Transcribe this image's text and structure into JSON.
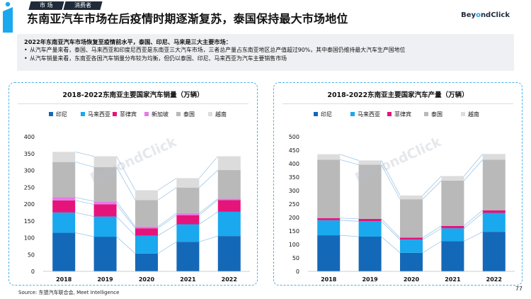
{
  "header": {
    "tabs": [
      "市  场",
      "消费者"
    ],
    "title": "东南亚汽车市场在后疫情时期逐渐复苏，泰国保持最大市场地位",
    "brand_prefix": "Bey",
    "brand_o": "o",
    "brand_suffix": "ndClick"
  },
  "summary": {
    "lead": "2022年东南亚汽车市场恢复至疫情前水平，泰国、印尼、马来是三大主要市场：",
    "bullets": [
      "从汽车产量来看，泰国、马来西亚和印度尼西亚是东南亚三大汽车市场，三者总产量占东南亚地区总产值超过90%，其中泰国仍维持最大汽车生产国地位",
      "从汽车销量来看，东南亚各国汽车销量分布较为均衡，但仍以泰国、印尼、马来西亚为汽车主要销售市场"
    ]
  },
  "watermark": "BeyondClick",
  "footer": {
    "source": "Source: 东盟汽车联合会, Meet Intelligence",
    "page": "77"
  },
  "colors": {
    "印尼": "#1468b8",
    "马来西亚": "#1aa8ee",
    "菲律宾": "#e5147a",
    "新加坡": "#e67ae8",
    "泰国": "#b9b9b9",
    "越南": "#dcdcdc",
    "connector": "#9ec8ea"
  },
  "chart_data": [
    {
      "type": "bar",
      "stacked": true,
      "title": "2018-2022东南亚主要国家汽车销量（万辆）",
      "categories": [
        "2018",
        "2019",
        "2020",
        "2021",
        "2022"
      ],
      "ylim": [
        0,
        400
      ],
      "yticks": [
        0,
        50,
        100,
        150,
        200,
        250,
        300,
        350,
        400
      ],
      "legend_position": "top",
      "series": [
        {
          "name": "印尼",
          "values": [
            115,
            103,
            53,
            88,
            105
          ]
        },
        {
          "name": "马来西亚",
          "values": [
            60,
            60,
            53,
            52,
            72
          ]
        },
        {
          "name": "菲律宾",
          "values": [
            36,
            36,
            22,
            27,
            35
          ]
        },
        {
          "name": "新加坡",
          "values": [
            9,
            9,
            5,
            6,
            4
          ]
        },
        {
          "name": "泰国",
          "values": [
            105,
            102,
            79,
            76,
            85
          ]
        },
        {
          "name": "越南",
          "values": [
            30,
            32,
            29,
            28,
            41
          ]
        }
      ]
    },
    {
      "type": "bar",
      "stacked": true,
      "title": "2018-2022东南亚主要国家汽车产量（万辆）",
      "categories": [
        "2018",
        "2019",
        "2020",
        "2021",
        "2022"
      ],
      "ylim": [
        0,
        500
      ],
      "yticks": [
        0,
        50,
        100,
        150,
        200,
        250,
        300,
        350,
        400,
        450,
        500
      ],
      "legend_position": "top",
      "series": [
        {
          "name": "印尼",
          "values": [
            134,
            129,
            69,
            112,
            147
          ]
        },
        {
          "name": "马来西亚",
          "values": [
            56,
            57,
            49,
            48,
            70
          ]
        },
        {
          "name": "菲律宾",
          "values": [
            8,
            9,
            7,
            9,
            10
          ]
        },
        {
          "name": "泰国",
          "values": [
            217,
            201,
            143,
            168,
            188
          ]
        },
        {
          "name": "越南",
          "values": [
            20,
            16,
            14,
            17,
            21
          ]
        }
      ]
    }
  ]
}
